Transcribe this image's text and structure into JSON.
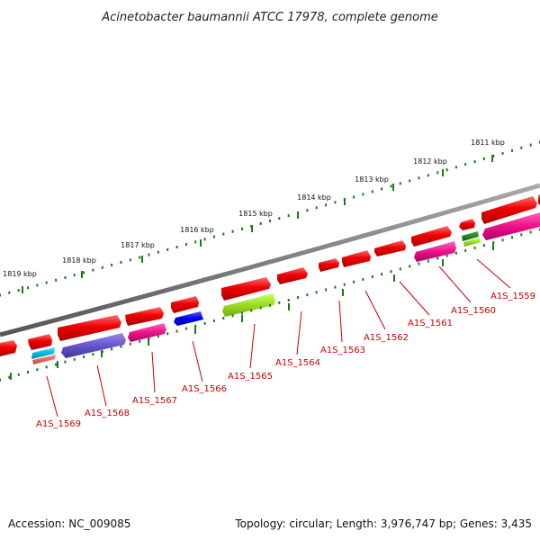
{
  "title": "Acinetobacter baumannii ATCC 17978, complete genome",
  "footer": {
    "accession": "Accession: NC_009085",
    "summary": "Topology: circular; Length: 3,976,747 bp; Genes: 3,435"
  },
  "scale_labels": [
    "1811 kbp",
    "1812 kbp",
    "1813 kbp",
    "1814 kbp",
    "1815 kbp",
    "1816 kbp",
    "1817 kbp",
    "1818 kbp",
    "1819 kbp"
  ],
  "gene_labels": [
    "A1S_1559",
    "A1S_1560",
    "A1S_1561",
    "A1S_1562",
    "A1S_1563",
    "A1S_1564",
    "A1S_1565",
    "A1S_1566",
    "A1S_1567",
    "A1S_1568",
    "A1S_1569"
  ],
  "colors": {
    "backbone": "#808080",
    "tick": "#1a7a1a",
    "gene": "#ee0000",
    "label": "#cc0000",
    "magenta": "#ee1188",
    "purple": "#6655cc",
    "blue": "#0000ee",
    "lime": "#99dd22",
    "darkgreen": "#228822",
    "cyan": "#00bbdd",
    "salmon": "#ee6666"
  }
}
